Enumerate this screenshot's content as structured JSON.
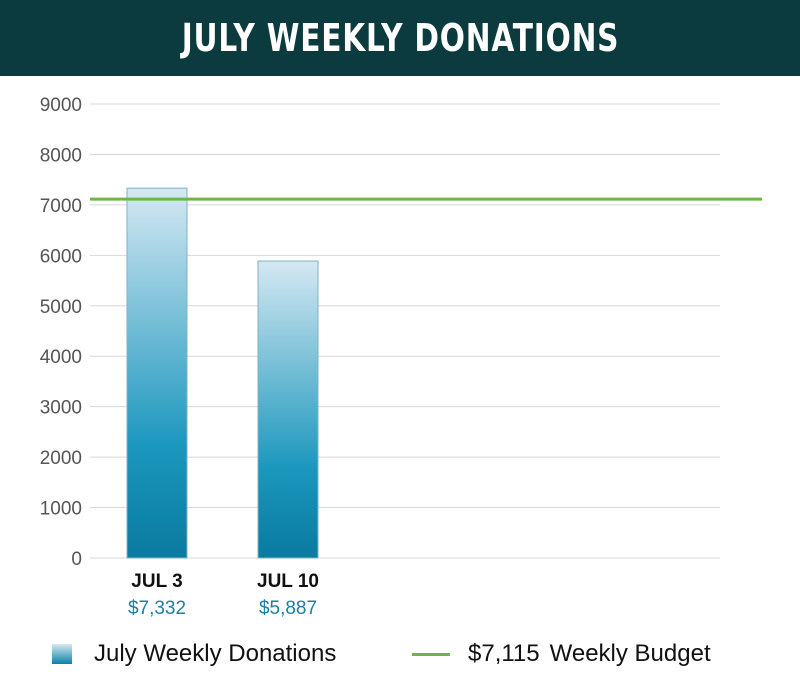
{
  "title": "July Weekly Donations",
  "chart_data": {
    "type": "bar",
    "title": "July Weekly Donations",
    "categories": [
      "JUL 3",
      "JUL 10"
    ],
    "value_labels": [
      "$7,332",
      "$5,887"
    ],
    "series": [
      {
        "name": "July Weekly Donations",
        "values": [
          7332,
          5887
        ]
      }
    ],
    "reference_line": {
      "name": "Weekly Budget",
      "label": "$7,115",
      "value": 7115
    },
    "yticks": [
      0,
      1000,
      2000,
      3000,
      4000,
      5000,
      6000,
      7000,
      8000,
      9000
    ],
    "ylim": [
      0,
      9000
    ],
    "xlabel": "",
    "ylabel": "",
    "grid": true,
    "legend_placement": "bottom",
    "colors": {
      "bar_top": "#d5e8f2",
      "bar_bottom": "#0a82a8",
      "line": "#6ab847",
      "value_label": "#1a7fa6",
      "header": "#0b3b3e"
    }
  },
  "legend": {
    "bars_label": "July Weekly Donations",
    "line_amount": "$7,115",
    "line_label": "Weekly Budget"
  }
}
